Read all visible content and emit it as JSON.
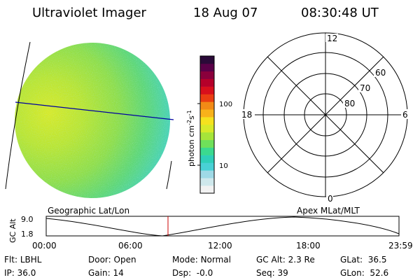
{
  "header": {
    "title": "Ultraviolet Imager",
    "date": "18 Aug 07",
    "time": "08:30:48 UT"
  },
  "colorbar": {
    "unit_label": "photon cm",
    "unit_exp1": "-2",
    "unit_s": "s",
    "unit_exp2": "-1",
    "ticks": [
      {
        "label": "100",
        "value": 100
      },
      {
        "label": "10",
        "value": 10
      }
    ],
    "colors": [
      "#f2f2f2",
      "#cfe8ec",
      "#9fd9e6",
      "#49d1d5",
      "#2fcfb8",
      "#3bd98f",
      "#6fe05a",
      "#a6e53a",
      "#d7ea2a",
      "#f5e21e",
      "#f8b21a",
      "#f28a16",
      "#ea3d12",
      "#d80f1c",
      "#b5002a",
      "#8a003c",
      "#5a0048",
      "#2a0a38"
    ]
  },
  "polar_plot": {
    "labels": {
      "top": "12",
      "left": "18",
      "right": "6",
      "bottom": "0"
    },
    "rings": [
      "60",
      "70",
      "80"
    ]
  },
  "image_panel": {
    "overlay_color": "#0000a0"
  },
  "altitude_plot": {
    "ylabel": "GC Alt",
    "yticks": [
      "9.0",
      "1.8"
    ],
    "left_title": "Geographic Lat/Lon",
    "right_title": "Apex MLat/MLT",
    "xticks": [
      "00:00",
      "06:00",
      "12:00",
      "18:00",
      "23:59"
    ],
    "current_time_color": "#cc0000"
  },
  "info": {
    "flt_label": "Flt:",
    "flt_value": "LBHL",
    "ip_label": "IP:",
    "ip_value": "36.0",
    "door_label": "Door:",
    "door_value": "Open",
    "gain_label": "Gain:",
    "gain_value": "14",
    "mode_label": "Mode:",
    "mode_value": "Normal",
    "dsp_label": "Dsp:",
    "dsp_value": "-0.0",
    "gcalt_label": "GC Alt:",
    "gcalt_value": "2.3 Re",
    "seq_label": "Seq:",
    "seq_value": "39",
    "glat_label": "GLat:",
    "glat_value": "36.5",
    "glon_label": "GLon:",
    "glon_value": "52.6"
  }
}
